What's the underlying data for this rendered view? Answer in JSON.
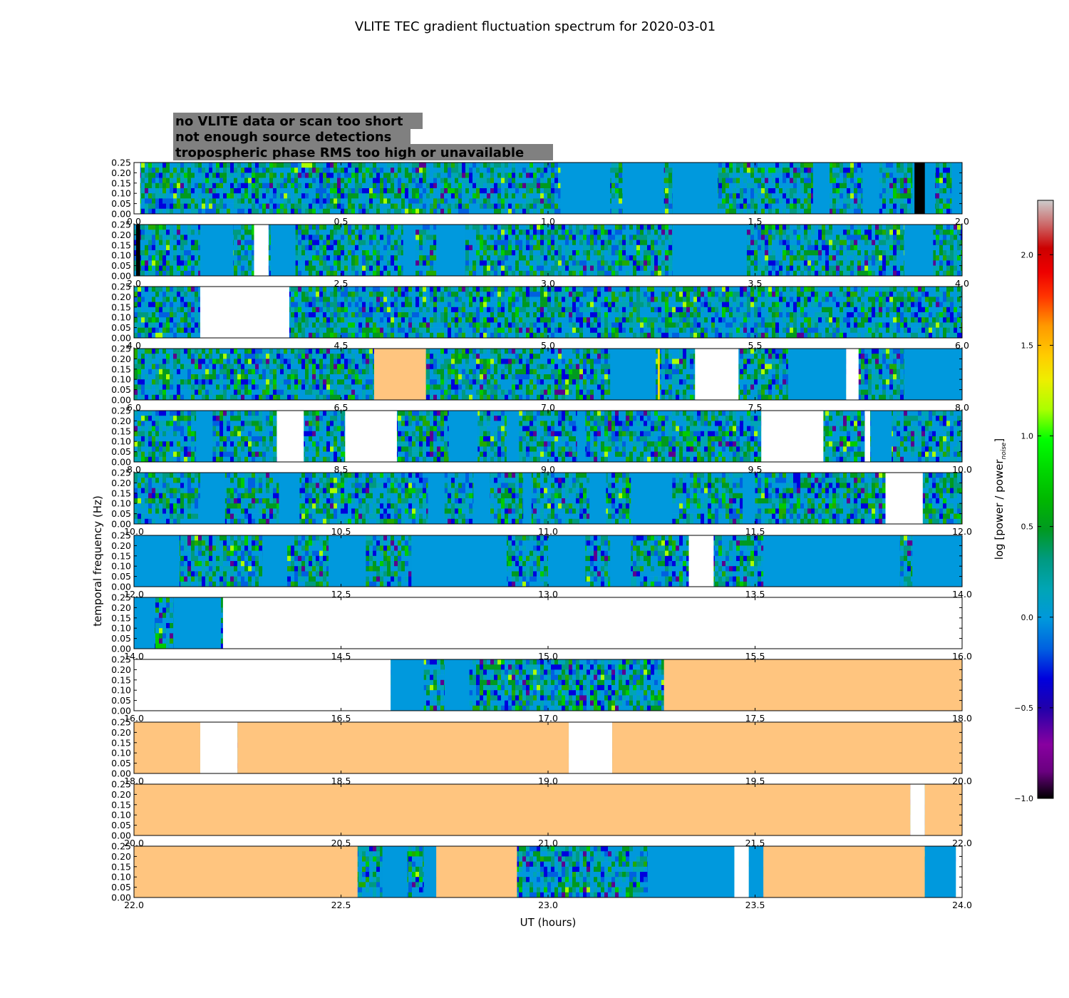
{
  "chart_data": {
    "type": "heatmap",
    "title": "VLITE TEC gradient fluctuation spectrum for 2020-03-01",
    "xlabel": "UT (hours)",
    "ylabel": "temporal frequency (Hz)",
    "yticks": [
      "0.00",
      "0.05",
      "0.10",
      "0.15",
      "0.20",
      "0.25"
    ],
    "ylim": [
      0,
      0.25
    ],
    "colorbar": {
      "label": "log [power / power_noise]",
      "label_main": "log [power / power",
      "label_sub": "noise",
      "label_end": "]",
      "range": [
        -1.0,
        2.3
      ],
      "ticks": [
        "−1.0",
        "−0.5",
        "0.0",
        "0.5",
        "1.0",
        "1.5",
        "2.0"
      ],
      "tick_values": [
        -1.0,
        -0.5,
        0.0,
        0.5,
        1.0,
        1.5,
        2.0
      ],
      "colormap": "nipy_spectral"
    },
    "legend": {
      "placement": "top-left",
      "entries": [
        {
          "label": "no VLITE data or scan too short",
          "color": "#ffffff"
        },
        {
          "label": "not enough source detections",
          "color": "#000000"
        },
        {
          "label": "tropospheric phase RMS too high or unavailable",
          "color": "#ffc57f"
        }
      ],
      "background": "#808080"
    },
    "segment_colors": {
      "noise": "#0099dd",
      "white": "#ffffff",
      "orange": "#ffc57f",
      "black": "#000000"
    },
    "panels": [
      {
        "xlim": [
          0.0,
          2.0
        ],
        "xticks": [
          "0.0",
          "0.5",
          "1.0",
          "1.5",
          "2.0"
        ],
        "segments": [
          [
            0.0,
            0.015,
            "white"
          ],
          [
            1.03,
            1.15,
            "blue"
          ],
          [
            1.18,
            1.28,
            "blue"
          ],
          [
            1.3,
            1.41,
            "blue"
          ],
          [
            1.88,
            1.935,
            "blue"
          ],
          [
            1.975,
            2.0,
            "blue"
          ],
          [
            1.64,
            1.68,
            "blue"
          ],
          [
            1.76,
            1.8,
            "blue"
          ],
          [
            1.885,
            1.91,
            "black"
          ]
        ]
      },
      {
        "xlim": [
          2.0,
          4.0
        ],
        "xticks": [
          "2.0",
          "2.5",
          "3.0",
          "3.5",
          "4.0"
        ],
        "segments": [
          [
            2.005,
            2.015,
            "black"
          ],
          [
            2.16,
            2.24,
            "blue"
          ],
          [
            2.29,
            2.325,
            "white"
          ],
          [
            2.33,
            2.39,
            "blue"
          ],
          [
            2.65,
            2.68,
            "blue"
          ],
          [
            2.73,
            2.8,
            "blue"
          ],
          [
            3.3,
            3.48,
            "blue"
          ],
          [
            3.86,
            3.93,
            "blue"
          ]
        ]
      },
      {
        "xlim": [
          4.0,
          6.0
        ],
        "xticks": [
          "4.0",
          "4.5",
          "5.0",
          "5.5",
          "6.0"
        ],
        "segments": [
          [
            4.16,
            4.375,
            "white"
          ]
        ]
      },
      {
        "xlim": [
          6.0,
          8.0
        ],
        "xticks": [
          "6.0",
          "6.5",
          "7.0",
          "7.5",
          "8.0"
        ],
        "segments": [
          [
            6.58,
            6.705,
            "orange"
          ],
          [
            7.15,
            7.26,
            "blue"
          ],
          [
            7.265,
            7.27,
            "yellow"
          ],
          [
            7.355,
            7.46,
            "white"
          ],
          [
            7.58,
            7.72,
            "blue"
          ],
          [
            7.72,
            7.75,
            "white"
          ],
          [
            7.86,
            8.0,
            "blue"
          ]
        ]
      },
      {
        "xlim": [
          8.0,
          10.0
        ],
        "xticks": [
          "8.0",
          "8.5",
          "9.0",
          "9.5",
          "10.0"
        ],
        "segments": [
          [
            8.15,
            8.19,
            "blue"
          ],
          [
            8.345,
            8.41,
            "white"
          ],
          [
            8.51,
            8.635,
            "white"
          ],
          [
            8.76,
            8.83,
            "blue"
          ],
          [
            8.9,
            8.93,
            "blue"
          ],
          [
            9.07,
            9.09,
            "blue"
          ],
          [
            9.515,
            9.665,
            "white"
          ],
          [
            9.765,
            9.778,
            "white"
          ],
          [
            9.78,
            9.83,
            "blue"
          ]
        ]
      },
      {
        "xlim": [
          10.0,
          12.0
        ],
        "xticks": [
          "10.0",
          "10.5",
          "11.0",
          "11.5",
          "12.0"
        ],
        "segments": [
          [
            10.16,
            10.22,
            "blue"
          ],
          [
            10.35,
            10.4,
            "blue"
          ],
          [
            10.71,
            10.75,
            "blue"
          ],
          [
            10.82,
            10.86,
            "blue"
          ],
          [
            10.94,
            10.96,
            "blue"
          ],
          [
            11.1,
            11.14,
            "blue"
          ],
          [
            11.2,
            11.3,
            "blue"
          ],
          [
            11.47,
            11.5,
            "blue"
          ],
          [
            11.815,
            11.905,
            "white"
          ]
        ]
      },
      {
        "xlim": [
          12.0,
          14.0
        ],
        "xticks": [
          "12.0",
          "12.5",
          "13.0",
          "13.5",
          "14.0"
        ],
        "segments": [
          [
            12.0,
            12.11,
            "blue"
          ],
          [
            12.31,
            12.37,
            "blue"
          ],
          [
            12.47,
            12.56,
            "blue"
          ],
          [
            12.67,
            12.9,
            "blue"
          ],
          [
            13.0,
            13.09,
            "blue"
          ],
          [
            13.15,
            13.2,
            "blue"
          ],
          [
            13.34,
            13.4,
            "white"
          ],
          [
            13.52,
            13.85,
            "blue"
          ],
          [
            13.88,
            14.0,
            "blue"
          ]
        ]
      },
      {
        "xlim": [
          14.0,
          16.0
        ],
        "xticks": [
          "14.0",
          "14.5",
          "15.0",
          "15.5",
          "16.0"
        ],
        "segments": [
          [
            14.0,
            14.05,
            "blue"
          ],
          [
            14.095,
            14.21,
            "blue"
          ],
          [
            14.215,
            16.0,
            "white"
          ]
        ]
      },
      {
        "xlim": [
          16.0,
          18.0
        ],
        "xticks": [
          "16.0",
          "16.5",
          "17.0",
          "17.5",
          "18.0"
        ],
        "segments": [
          [
            16.0,
            16.62,
            "white"
          ],
          [
            16.62,
            16.7,
            "blue"
          ],
          [
            16.75,
            16.81,
            "blue"
          ],
          [
            17.28,
            18.0,
            "orange"
          ]
        ]
      },
      {
        "xlim": [
          18.0,
          20.0
        ],
        "xticks": [
          "18.0",
          "18.5",
          "19.0",
          "19.5",
          "20.0"
        ],
        "segments": [
          [
            18.0,
            18.16,
            "orange"
          ],
          [
            18.16,
            18.25,
            "white"
          ],
          [
            18.25,
            19.05,
            "orange"
          ],
          [
            19.05,
            19.155,
            "white"
          ],
          [
            19.155,
            20.0,
            "orange"
          ]
        ]
      },
      {
        "xlim": [
          20.0,
          22.0
        ],
        "xticks": [
          "20.0",
          "20.5",
          "21.0",
          "21.5",
          "22.0"
        ],
        "segments": [
          [
            20.0,
            21.875,
            "orange"
          ],
          [
            21.875,
            21.91,
            "white"
          ],
          [
            21.91,
            22.0,
            "orange"
          ]
        ]
      },
      {
        "xlim": [
          22.0,
          24.0
        ],
        "xticks": [
          "22.0",
          "22.5",
          "23.0",
          "23.5",
          "24.0"
        ],
        "segments": [
          [
            22.0,
            22.54,
            "orange"
          ],
          [
            22.54,
            22.55,
            "noise"
          ],
          [
            22.6,
            22.66,
            "blue"
          ],
          [
            22.7,
            22.73,
            "blue"
          ],
          [
            22.73,
            22.925,
            "orange"
          ],
          [
            23.24,
            23.45,
            "blue"
          ],
          [
            23.45,
            23.485,
            "white"
          ],
          [
            23.485,
            23.52,
            "blue"
          ],
          [
            23.52,
            23.91,
            "orange"
          ],
          [
            23.91,
            23.985,
            "blue"
          ],
          [
            23.985,
            24.0,
            "white"
          ]
        ]
      }
    ]
  }
}
